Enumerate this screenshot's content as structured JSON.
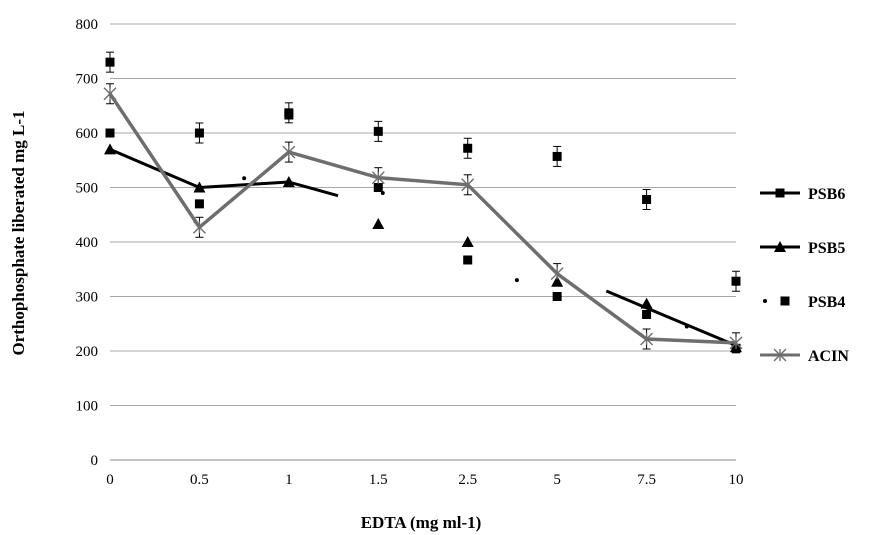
{
  "chart_data": {
    "type": "line",
    "title": "",
    "xlabel": "EDTA (mg ml-1)",
    "ylabel": "Orthophosphate liberated  mg L-1",
    "categories": [
      "0",
      "0.5",
      "1",
      "1.5",
      "2.5",
      "5",
      "7.5",
      "10"
    ],
    "ylim": [
      0,
      800
    ],
    "yticks": [
      0,
      100,
      200,
      300,
      400,
      500,
      600,
      700,
      800
    ],
    "grid": true,
    "legend_position": "right",
    "series": [
      {
        "name": "PSB6",
        "marker": "square",
        "line": true,
        "color": "#000000",
        "points": [
          {
            "x": "0",
            "y": 600
          },
          {
            "x": "0.5",
            "y": 470
          },
          {
            "x": "1",
            "y": 633
          },
          {
            "x": "1.5",
            "y": 500
          },
          {
            "x": "2.5",
            "y": 367
          },
          {
            "x": "5",
            "y": 300
          },
          {
            "x": "7.5",
            "y": 267
          },
          {
            "x": "10",
            "y": 205
          }
        ],
        "line_segments": [
          {
            "from": "1",
            "to": "1.5",
            "y_start": 510,
            "y_end": 485
          },
          {
            "from": "5",
            "to": "10",
            "y_start": 310,
            "y_end": 210
          }
        ]
      },
      {
        "name": "PSB5",
        "marker": "triangle",
        "line": true,
        "color": "#000000",
        "values": [
          570,
          500,
          510,
          433,
          400,
          327,
          287,
          207
        ]
      },
      {
        "name": "PSB4",
        "marker": "square",
        "line": false,
        "color": "#000000",
        "points": [
          {
            "x": "0",
            "y": 730
          },
          {
            "x": "0.5",
            "y": 600
          },
          {
            "x": "1",
            "y": 637
          },
          {
            "x": "1.5",
            "y": 603
          },
          {
            "x": "2.5",
            "y": 572
          },
          {
            "x": "5",
            "y": 557
          },
          {
            "x": "7.5",
            "y": 478
          },
          {
            "x": "10",
            "y": 328
          }
        ],
        "dots": [
          {
            "x_between": [
              "0.5",
              "1"
            ],
            "frac": 0.5,
            "y": 517
          },
          {
            "x_between": [
              "1.5",
              "2.5"
            ],
            "frac": 0.05,
            "y": 490
          },
          {
            "x_between": [
              "2.5",
              "5"
            ],
            "frac": 0.55,
            "y": 330
          },
          {
            "x_between": [
              "7.5",
              "10"
            ],
            "frac": 0.45,
            "y": 245
          }
        ]
      },
      {
        "name": "ACIN",
        "marker": "asterisk",
        "line": true,
        "color": "#6e6e6e",
        "values": [
          672,
          427,
          565,
          518,
          505,
          342,
          222,
          215
        ]
      }
    ]
  }
}
